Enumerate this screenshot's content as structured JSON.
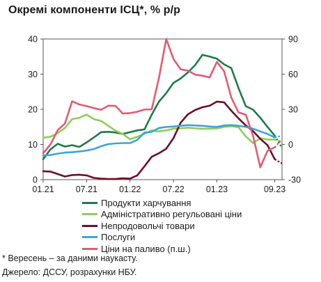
{
  "chart_data": {
    "type": "line",
    "title": "Окремі компоненти ІСЦ*, % р/р",
    "x_ticks": [
      "01.21",
      "07.21",
      "01.22",
      "07.22",
      "01.23",
      "09.23"
    ],
    "y_left": {
      "ticks": [
        0,
        10,
        20,
        30,
        40
      ],
      "ylim": [
        0,
        40
      ]
    },
    "y_right": {
      "ticks": [
        -30,
        0,
        30,
        60,
        90
      ],
      "ylim": [
        -30,
        90
      ]
    },
    "series": [
      {
        "name": "Продукти харчування",
        "axis": "left",
        "color": "#1f7a4a",
        "values": [
          5.8,
          8.6,
          10.2,
          9.4,
          9.8,
          9.3,
          10.6,
          12.0,
          13.5,
          13.6,
          13.4,
          13.0,
          13.5,
          14.0,
          14.3,
          18.5,
          22.2,
          24.6,
          27.5,
          28.8,
          30.5,
          32.6,
          35.5,
          35.0,
          34.4,
          32.8,
          31.7,
          26.0,
          20.9,
          19.9,
          17.6,
          15.0,
          12.5
        ],
        "forecast": [
          12.5,
          9.0
        ]
      },
      {
        "name": "Адміністративно регульовані ціни",
        "axis": "left",
        "color": "#8fcc5a",
        "values": [
          11.9,
          12.2,
          13.2,
          14.7,
          17.2,
          17.6,
          18.5,
          17.2,
          16.7,
          15.3,
          13.9,
          13.0,
          11.5,
          12.2,
          13.0,
          14.0,
          13.7,
          14.0,
          14.5,
          14.6,
          14.8,
          14.6,
          14.5,
          14.5,
          14.6,
          15.0,
          15.2,
          14.9,
          12.3,
          10.4,
          11.8,
          11.4,
          11.4
        ],
        "forecast": [
          11.4,
          10.7
        ]
      },
      {
        "name": "Непродовольчі товари",
        "axis": "left",
        "color": "#6b0f2a",
        "values": [
          2.4,
          2.3,
          1.6,
          0.9,
          1.3,
          1.4,
          1.2,
          0.5,
          0.3,
          0.2,
          0.2,
          0.4,
          0.3,
          1.2,
          3.8,
          6.5,
          7.5,
          8.8,
          11.8,
          16.2,
          18.6,
          19.8,
          20.6,
          21.0,
          22.2,
          22.0,
          19.6,
          17.4,
          15.4,
          13.8,
          11.6,
          9.8,
          5.8
        ],
        "forecast": [
          5.8,
          4.6
        ]
      },
      {
        "name": "Послуги",
        "axis": "left",
        "color": "#3aa6d6",
        "values": [
          6.9,
          7.0,
          7.4,
          7.7,
          7.8,
          8.0,
          8.3,
          8.7,
          9.5,
          10.1,
          10.3,
          10.4,
          10.4,
          11.3,
          13.4,
          13.6,
          14.7,
          15.0,
          15.1,
          15.3,
          15.5,
          15.4,
          15.3,
          15.1,
          15.0,
          15.4,
          15.5,
          15.3,
          15.0,
          14.5,
          13.7,
          13.0,
          12.0
        ],
        "forecast": [
          12.0,
          12.5
        ]
      },
      {
        "name": "Ціни на паливо (п.ш.)",
        "axis": "right",
        "color": "#e05c73",
        "values": [
          -7.5,
          0.0,
          12.2,
          17.9,
          36.9,
          34.1,
          32.8,
          31.0,
          29.6,
          33.1,
          32.9,
          26.4,
          26.8,
          27.9,
          29.8,
          30.0,
          56.9,
          90.0,
          73.0,
          64.1,
          63.0,
          59.6,
          58.7,
          57.2,
          70.5,
          62.5,
          39.9,
          27.4,
          25.4,
          7.5,
          -19.5,
          -5.4,
          -2.4
        ],
        "forecast": [
          -2.4,
          4.5
        ]
      }
    ]
  },
  "legend_entries": [
    "Продукти харчування",
    "Адміністративно регульовані ціни",
    "Непродовольчі товари",
    "Послуги",
    "Ціни на паливо (п.ш.)"
  ],
  "footnote": "* Вересень – за даними наукасту.",
  "source": "Джерело: ДССУ, розрахунки НБУ."
}
